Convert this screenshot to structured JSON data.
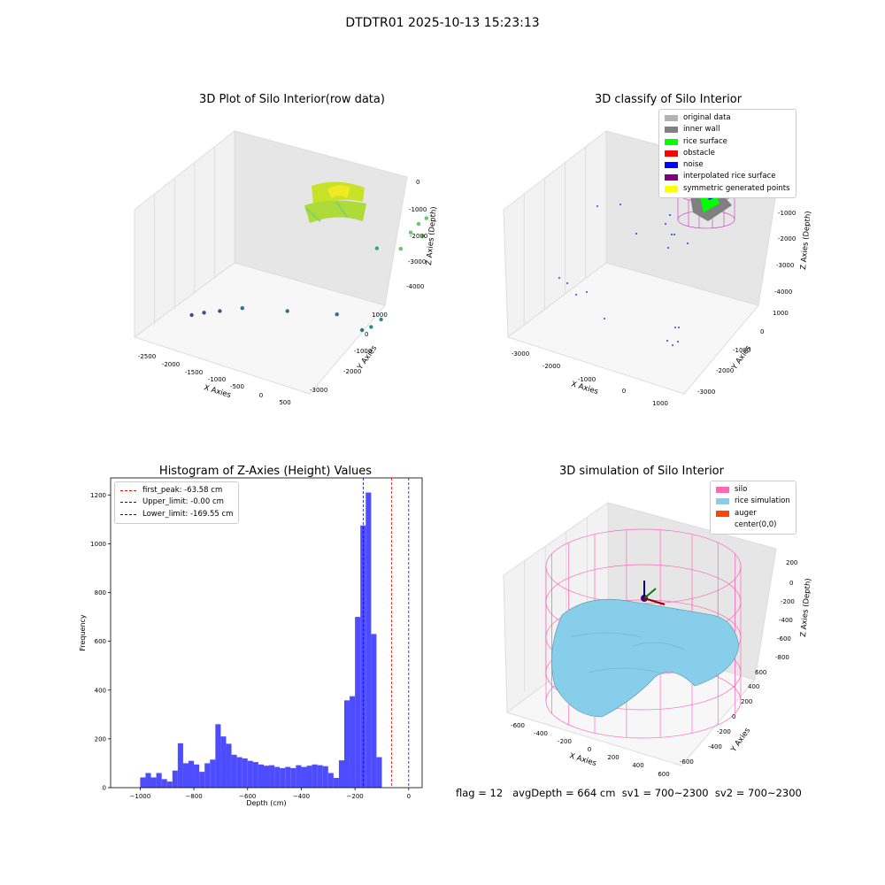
{
  "figure": {
    "title": "DTDTR01 2025-10-13 15:23:13",
    "footer": "flag = 12   avgDepth = 664 cm  sv1 = 700~2300  sv2 = 700~2300"
  },
  "chart_data": [
    {
      "type": "scatter",
      "title": "3D Plot of Silo Interior(row data)",
      "xlabel": "X Axies",
      "ylabel": "Y Axies",
      "zlabel": "Z Axies (Depth)",
      "x_ticks": [
        "-2500",
        "-2000",
        "-1500",
        "-1000",
        "-500",
        "0",
        "500"
      ],
      "y_ticks": [
        "-3000",
        "-2000",
        "-1000",
        "0",
        "1000"
      ],
      "z_ticks": [
        "0",
        "-1000",
        "-2000",
        "-3000",
        "-4000"
      ],
      "xlim": [
        -2700,
        700
      ],
      "ylim": [
        -3400,
        1400
      ],
      "zlim": [
        -4500,
        0
      ],
      "colormap": "viridis",
      "points": [
        {
          "x": -2450,
          "y": -2300,
          "z": -4000
        },
        {
          "x": -2300,
          "y": -2200,
          "z": -3900
        },
        {
          "x": -2100,
          "y": -2100,
          "z": -3800
        },
        {
          "x": -1800,
          "y": -2000,
          "z": -3600
        },
        {
          "x": -1200,
          "y": -1800,
          "z": -3500
        },
        {
          "x": -500,
          "y": -1700,
          "z": -3300
        },
        {
          "x": 100,
          "y": -2400,
          "z": -3100
        },
        {
          "x": 200,
          "y": -2300,
          "z": -3000
        },
        {
          "x": 250,
          "y": -2000,
          "z": -2900
        },
        {
          "x": -1300,
          "y": 200,
          "z": -700
        },
        {
          "x": -800,
          "y": 300,
          "z": -500
        },
        {
          "x": -400,
          "y": -200,
          "z": -1900
        },
        {
          "x": 50,
          "y": -500,
          "z": -1500
        },
        {
          "x": 100,
          "y": -200,
          "z": -1100
        },
        {
          "x": 150,
          "y": 0,
          "z": -900
        },
        {
          "x": 200,
          "y": 200,
          "z": -800
        },
        {
          "x": 250,
          "y": -100,
          "z": -1200
        }
      ],
      "surface_note": "dense rice surface points near X 0..400, Z -500..-1300"
    },
    {
      "type": "scatter",
      "title": "3D classify of Silo Interior",
      "xlabel": "X Axies",
      "ylabel": "Y Axies",
      "zlabel": "Z Axies (Depth)",
      "x_ticks": [
        "-3000",
        "-2000",
        "-1000",
        "0",
        "1000"
      ],
      "y_ticks": [
        "-3000",
        "-2000",
        "-1000",
        "0",
        "1000"
      ],
      "z_ticks": [
        "0",
        "-1000",
        "-2000",
        "-3000",
        "-4000"
      ],
      "legend": [
        {
          "label": "original data",
          "color": "#b3b3b3"
        },
        {
          "label": "inner wall",
          "color": "#808080"
        },
        {
          "label": "rice surface",
          "color": "#00ff00"
        },
        {
          "label": "obstacle",
          "color": "#ff0000"
        },
        {
          "label": "noise",
          "color": "#0000ff"
        },
        {
          "label": "interpolated rice surface",
          "color": "#800080"
        },
        {
          "label": "symmetric generated points",
          "color": "#ffff00"
        }
      ]
    },
    {
      "type": "bar",
      "title": "Histogram of Z-Axies (Height) Values",
      "xlabel": "Depth (cm)",
      "ylabel": "Frequency",
      "xlim": [
        -1110,
        50
      ],
      "ylim": [
        0,
        1270
      ],
      "x_ticks": [
        -1000,
        -800,
        -600,
        -400,
        -200,
        0
      ],
      "y_ticks": [
        0,
        200,
        400,
        600,
        800,
        1000,
        1200
      ],
      "bin_start": -1000,
      "bin_width": 20,
      "bar_color": "#4d4dff",
      "values": [
        42,
        60,
        42,
        60,
        35,
        25,
        70,
        182,
        100,
        110,
        95,
        65,
        100,
        115,
        260,
        210,
        180,
        135,
        125,
        120,
        110,
        105,
        95,
        90,
        92,
        85,
        80,
        85,
        80,
        92,
        85,
        90,
        95,
        92,
        88,
        60,
        40,
        112,
        358,
        375,
        700,
        1075,
        1210,
        630,
        125
      ],
      "lines": [
        {
          "label": "first_peak: -63.58 cm",
          "value": -63.58,
          "color": "#ff0000"
        },
        {
          "label": "Upper_limit: -0.00 cm",
          "value": 0,
          "color": "#0000ff"
        },
        {
          "label": "Lower_limit: -169.55 cm",
          "value": -169.55,
          "color": "#0000ff"
        }
      ]
    },
    {
      "type": "surface",
      "title": "3D simulation of Silo Interior",
      "xlabel": "X Axies",
      "ylabel": "Y Axies",
      "zlabel": "Z Axies (Depth)",
      "x_ticks": [
        "-600",
        "-400",
        "-200",
        "0",
        "200",
        "400",
        "600"
      ],
      "y_ticks": [
        "-600",
        "-400",
        "-200",
        "0",
        "200",
        "400",
        "600"
      ],
      "z_ticks": [
        "200",
        "0",
        "-200",
        "-400",
        "-600",
        "-800"
      ],
      "legend": [
        {
          "label": "silo",
          "color": "#ff69b4"
        },
        {
          "label": "rice simulation",
          "color": "#87ceeb"
        },
        {
          "label": "auger",
          "color": "#ff4500"
        },
        {
          "label": "center(0,0)",
          "color": ""
        }
      ]
    }
  ]
}
